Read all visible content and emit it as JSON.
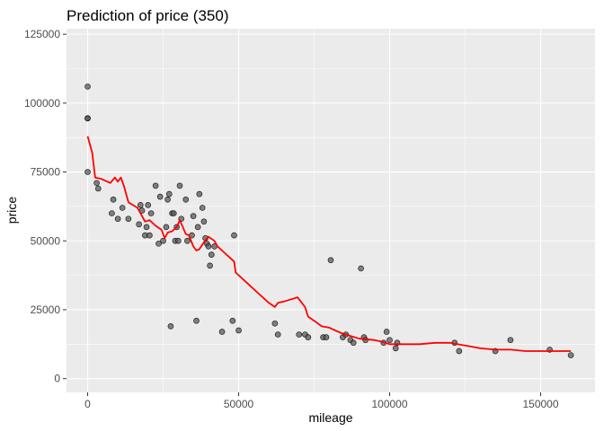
{
  "chart_data": {
    "type": "scatter",
    "title": "Prediction of price (350)",
    "xlabel": "mileage",
    "ylabel": "price",
    "xlim": [
      -7000,
      168000
    ],
    "ylim": [
      -5000,
      127000
    ],
    "x_ticks": [
      0,
      50000,
      100000,
      150000
    ],
    "x_tick_labels": [
      "0",
      "50000",
      "100000",
      "150000"
    ],
    "y_ticks": [
      0,
      25000,
      50000,
      75000,
      100000,
      125000
    ],
    "y_tick_labels": [
      "0",
      "25000",
      "50000",
      "75000",
      "100000",
      "125000"
    ],
    "grid": true,
    "legend": "none",
    "colors": {
      "panel_background": "#ebebeb",
      "grid": "#ffffff",
      "points": "#595959",
      "prediction_line": "#ff0000"
    },
    "series": [
      {
        "type": "scatter",
        "points": [
          [
            0,
            106000
          ],
          [
            0,
            94500
          ],
          [
            0,
            94500
          ],
          [
            0,
            75000
          ],
          [
            3000,
            71000
          ],
          [
            3500,
            69000
          ],
          [
            8000,
            60000
          ],
          [
            8500,
            65000
          ],
          [
            10000,
            58000
          ],
          [
            11500,
            62000
          ],
          [
            13500,
            58000
          ],
          [
            17000,
            56000
          ],
          [
            17500,
            63000
          ],
          [
            18000,
            61000
          ],
          [
            19000,
            52000
          ],
          [
            19500,
            55000
          ],
          [
            20000,
            63000
          ],
          [
            20500,
            52000
          ],
          [
            21000,
            60000
          ],
          [
            22500,
            70000
          ],
          [
            23500,
            49000
          ],
          [
            24000,
            66000
          ],
          [
            25000,
            50000
          ],
          [
            26000,
            55000
          ],
          [
            26500,
            65000
          ],
          [
            27000,
            67000
          ],
          [
            27500,
            19000
          ],
          [
            28000,
            60000
          ],
          [
            28500,
            60000
          ],
          [
            29000,
            50000
          ],
          [
            29500,
            55000
          ],
          [
            30000,
            50000
          ],
          [
            30500,
            70000
          ],
          [
            31000,
            58000
          ],
          [
            32500,
            65000
          ],
          [
            33000,
            50000
          ],
          [
            34500,
            52000
          ],
          [
            35000,
            59000
          ],
          [
            36000,
            21000
          ],
          [
            36500,
            55000
          ],
          [
            37000,
            67000
          ],
          [
            38000,
            62000
          ],
          [
            38500,
            57000
          ],
          [
            39000,
            51000
          ],
          [
            39500,
            49000
          ],
          [
            40000,
            48000
          ],
          [
            40500,
            41000
          ],
          [
            41000,
            45000
          ],
          [
            42000,
            48000
          ],
          [
            44500,
            17000
          ],
          [
            48000,
            21000
          ],
          [
            48500,
            52000
          ],
          [
            50000,
            17500
          ],
          [
            62000,
            20000
          ],
          [
            63000,
            16000
          ],
          [
            70000,
            16000
          ],
          [
            72000,
            16000
          ],
          [
            73000,
            15000
          ],
          [
            78000,
            15000
          ],
          [
            79000,
            15000
          ],
          [
            80500,
            43000
          ],
          [
            84500,
            15000
          ],
          [
            85500,
            16000
          ],
          [
            87000,
            14000
          ],
          [
            88000,
            13000
          ],
          [
            90500,
            40000
          ],
          [
            91500,
            15000
          ],
          [
            92000,
            14000
          ],
          [
            98000,
            13000
          ],
          [
            99000,
            17000
          ],
          [
            100000,
            14000
          ],
          [
            102000,
            11000
          ],
          [
            102500,
            13000
          ],
          [
            121500,
            13000
          ],
          [
            123000,
            10000
          ],
          [
            135000,
            10000
          ],
          [
            140000,
            14000
          ],
          [
            153000,
            10500
          ],
          [
            160000,
            8500
          ]
        ]
      },
      {
        "type": "line",
        "points": [
          [
            0,
            88000
          ],
          [
            1500,
            82000
          ],
          [
            2500,
            73000
          ],
          [
            4500,
            72500
          ],
          [
            6500,
            71500
          ],
          [
            7500,
            71000
          ],
          [
            9000,
            73000
          ],
          [
            10000,
            71500
          ],
          [
            11000,
            73000
          ],
          [
            12000,
            70000
          ],
          [
            13500,
            64000
          ],
          [
            15000,
            63000
          ],
          [
            16500,
            62000
          ],
          [
            18000,
            59000
          ],
          [
            19000,
            57000
          ],
          [
            20500,
            57500
          ],
          [
            22500,
            55500
          ],
          [
            24500,
            54000
          ],
          [
            25500,
            51000
          ],
          [
            26500,
            53000
          ],
          [
            28000,
            53500
          ],
          [
            29500,
            55000
          ],
          [
            30500,
            57500
          ],
          [
            31500,
            55000
          ],
          [
            32500,
            52500
          ],
          [
            33500,
            52000
          ],
          [
            35000,
            48000
          ],
          [
            36000,
            46500
          ],
          [
            37000,
            47000
          ],
          [
            38500,
            49500
          ],
          [
            40000,
            51500
          ],
          [
            42000,
            50000
          ],
          [
            43000,
            48000
          ],
          [
            45000,
            46000
          ],
          [
            47000,
            44000
          ],
          [
            48500,
            42500
          ],
          [
            49000,
            38500
          ],
          [
            51500,
            36000
          ],
          [
            54000,
            33500
          ],
          [
            57000,
            30500
          ],
          [
            60000,
            27500
          ],
          [
            62000,
            26000
          ],
          [
            63000,
            27500
          ],
          [
            65000,
            28000
          ],
          [
            68000,
            29000
          ],
          [
            69500,
            29500
          ],
          [
            72000,
            26000
          ],
          [
            73000,
            22500
          ],
          [
            75000,
            21000
          ],
          [
            77500,
            19000
          ],
          [
            80000,
            18500
          ],
          [
            82000,
            17500
          ],
          [
            84000,
            16500
          ],
          [
            87000,
            15500
          ],
          [
            90000,
            14500
          ],
          [
            95000,
            14000
          ],
          [
            97000,
            13500
          ],
          [
            100000,
            12500
          ],
          [
            105000,
            12500
          ],
          [
            110000,
            12500
          ],
          [
            115000,
            13000
          ],
          [
            120000,
            13000
          ],
          [
            125000,
            12000
          ],
          [
            130000,
            11000
          ],
          [
            135000,
            10500
          ],
          [
            140000,
            10500
          ],
          [
            145000,
            10000
          ],
          [
            150000,
            10000
          ],
          [
            155000,
            10000
          ],
          [
            160000,
            10000
          ]
        ]
      }
    ]
  }
}
